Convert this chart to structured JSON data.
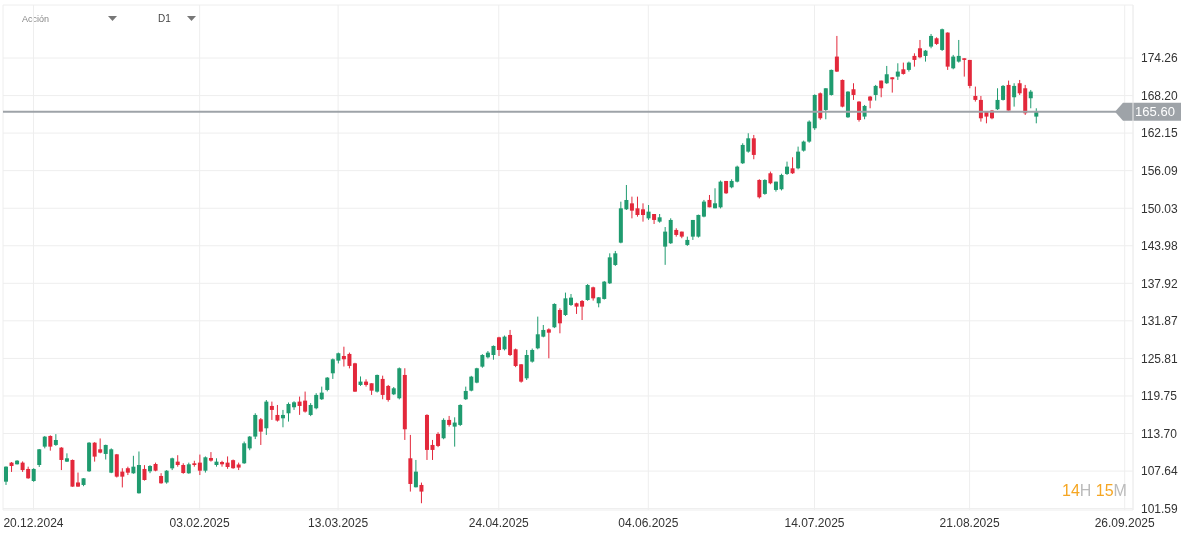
{
  "chart_data": {
    "type": "candlestick",
    "subtitle": "Acción",
    "annotations": [
      "D1",
      "14H 15M"
    ],
    "categories": [
      null,
      null,
      null,
      null,
      null,
      "20.12.2024",
      null,
      null,
      null,
      null,
      null,
      null,
      null,
      null,
      null,
      null,
      null,
      null,
      null,
      null,
      null,
      null,
      null,
      null,
      null,
      null,
      null,
      null,
      null,
      null,
      null,
      null,
      null,
      null,
      null,
      "03.02.2025",
      null,
      null,
      null,
      null,
      null,
      null,
      null,
      null,
      null,
      null,
      null,
      null,
      null,
      null,
      null,
      null,
      null,
      null,
      null,
      null,
      null,
      null,
      null,
      null,
      "13.03.2025",
      null,
      null,
      null,
      null,
      null,
      null,
      null,
      null,
      null,
      null,
      null,
      null,
      null,
      null,
      null,
      null,
      null,
      null,
      null,
      null,
      null,
      null,
      null,
      null,
      null,
      null,
      null,
      null,
      "24.04.2025",
      null,
      null,
      null,
      null,
      null,
      null,
      null,
      null,
      null,
      null,
      null,
      null,
      null,
      null,
      null,
      null,
      null,
      null,
      null,
      null,
      null,
      null,
      null,
      null,
      null,
      null,
      "04.06.2025",
      null,
      null,
      null,
      null,
      null,
      null,
      null,
      null,
      null,
      null,
      null,
      null,
      null,
      null,
      null,
      null,
      null,
      null,
      null,
      null,
      null,
      null,
      null,
      null,
      null,
      null,
      null,
      null,
      null,
      "14.07.2025",
      null,
      null,
      null,
      null,
      null,
      null,
      null,
      null,
      null,
      null,
      null,
      null,
      null,
      null,
      null,
      null,
      null,
      null,
      null,
      null,
      null,
      null,
      null,
      null,
      null,
      null,
      null,
      "21.08.2025",
      null,
      null,
      null,
      null,
      null,
      null,
      null,
      null,
      null,
      null,
      null,
      null,
      null,
      null,
      null,
      null,
      null,
      null,
      null,
      null,
      null,
      null,
      null,
      null,
      null,
      null,
      null,
      "26.09.2025",
      null
    ],
    "ohlc": [
      [
        105.93,
        108.4,
        105.4,
        108.35
      ],
      [
        109.0,
        109.1,
        107.5,
        108.46
      ],
      [
        108.73,
        109.4,
        108.7,
        109.32
      ],
      [
        109.0,
        109.2,
        107.5,
        107.8
      ],
      [
        107.98,
        108.35,
        106.4,
        106.47
      ],
      [
        106.04,
        108.1,
        105.9,
        107.98
      ],
      [
        108.62,
        111.2,
        108.3,
        111.15
      ],
      [
        111.58,
        113.3,
        111.3,
        113.19
      ],
      [
        113.3,
        113.4,
        110.93,
        111.58
      ],
      [
        111.85,
        113.6,
        111.7,
        112.65
      ],
      [
        111.42,
        111.5,
        107.8,
        109.43
      ],
      [
        109.16,
        110.5,
        109.1,
        109.7
      ],
      [
        109.43,
        109.5,
        105.1,
        105.13
      ],
      [
        105.8,
        107.4,
        105.1,
        105.13
      ],
      [
        105.4,
        106.5,
        105.2,
        106.47
      ],
      [
        107.6,
        112.3,
        107.5,
        112.22
      ],
      [
        112.22,
        112.3,
        109.16,
        109.97
      ],
      [
        111.15,
        112.9,
        110.5,
        110.61
      ],
      [
        110.4,
        111.9,
        109.5,
        111.85
      ],
      [
        107.38,
        111.3,
        107.3,
        111.15
      ],
      [
        110.34,
        110.4,
        106.6,
        106.74
      ],
      [
        107.55,
        108.1,
        105.0,
        106.74
      ],
      [
        108.1,
        108.35,
        107.0,
        107.38
      ],
      [
        107.28,
        110.1,
        107.2,
        108.35
      ],
      [
        104.06,
        110.8,
        104.0,
        108.62
      ],
      [
        107.98,
        108.6,
        106.1,
        106.2
      ],
      [
        107.6,
        108.6,
        107.3,
        108.46
      ],
      [
        108.78,
        109.0,
        107.6,
        107.7
      ],
      [
        106.85,
        107.3,
        105.6,
        105.67
      ],
      [
        105.8,
        107.8,
        105.6,
        107.7
      ],
      [
        108.08,
        109.8,
        107.8,
        109.7
      ],
      [
        109.16,
        110.2,
        108.35,
        108.62
      ],
      [
        108.62,
        108.9,
        107.2,
        107.33
      ],
      [
        107.28,
        109.0,
        107.2,
        108.73
      ],
      [
        108.89,
        109.3,
        108.35,
        108.62
      ],
      [
        109.0,
        110.3,
        107.0,
        107.7
      ],
      [
        107.7,
        110.0,
        107.4,
        109.86
      ],
      [
        109.75,
        110.7,
        109.16,
        109.32
      ],
      [
        108.62,
        109.7,
        108.35,
        109.16
      ],
      [
        109.1,
        109.3,
        108.35,
        108.73
      ],
      [
        109.0,
        110.0,
        108.0,
        108.3
      ],
      [
        109.4,
        109.5,
        108.0,
        108.1
      ],
      [
        108.7,
        109.0,
        107.8,
        108.2
      ],
      [
        108.89,
        112.4,
        108.8,
        112.12
      ],
      [
        111.3,
        113.3,
        111.0,
        113.2
      ],
      [
        113.2,
        116.96,
        112.8,
        116.69
      ],
      [
        115.99,
        116.2,
        111.85,
        114.0
      ],
      [
        114.54,
        119.1,
        113.47,
        118.84
      ],
      [
        118.14,
        118.84,
        115.89,
        117.5
      ],
      [
        116.69,
        118.3,
        115.62,
        115.78
      ],
      [
        116.15,
        117.5,
        114.7,
        116.69
      ],
      [
        116.96,
        118.7,
        115.62,
        118.46
      ],
      [
        117.93,
        118.9,
        117.5,
        118.73
      ],
      [
        118.84,
        119.65,
        116.7,
        118.14
      ],
      [
        119.0,
        120.46,
        117.07,
        117.23
      ],
      [
        116.69,
        118.6,
        116.5,
        118.3
      ],
      [
        117.77,
        120.2,
        117.6,
        119.92
      ],
      [
        119.22,
        121.26,
        119.11,
        120.29
      ],
      [
        120.72,
        122.8,
        120.5,
        122.71
      ],
      [
        123.41,
        125.8,
        122.5,
        125.67
      ],
      [
        125.45,
        126.75,
        125.0,
        126.64
      ],
      [
        126.2,
        127.7,
        124.5,
        125.67
      ],
      [
        126.53,
        126.75,
        124.2,
        124.6
      ],
      [
        125.02,
        125.1,
        120.4,
        120.45
      ],
      [
        121.53,
        122.9,
        121.37,
        122.07
      ],
      [
        122.07,
        122.44,
        121.26,
        121.53
      ],
      [
        121.8,
        121.8,
        119.92,
        120.61
      ],
      [
        120.45,
        123.2,
        120.3,
        123.14
      ],
      [
        122.5,
        123.03,
        119.22,
        119.92
      ],
      [
        121.37,
        121.53,
        118.84,
        119.11
      ],
      [
        120.02,
        121.2,
        119.9,
        120.99
      ],
      [
        119.38,
        124.35,
        119.2,
        124.22
      ],
      [
        123.14,
        124.22,
        112.66,
        114.38
      ],
      [
        109.7,
        113.47,
        104.33,
        105.56
      ],
      [
        105.03,
        109.43,
        105.0,
        107.55
      ],
      [
        105.4,
        105.78,
        102.45,
        104.33
      ],
      [
        116.69,
        116.8,
        109.43,
        111.05
      ],
      [
        111.85,
        112.66,
        109.43,
        111.05
      ],
      [
        113.63,
        113.9,
        111.5,
        111.69
      ],
      [
        112.93,
        116.15,
        112.77,
        115.89
      ],
      [
        115.89,
        116.53,
        114.81,
        115.08
      ],
      [
        114.81,
        116.31,
        111.58,
        115.46
      ],
      [
        115.08,
        118.4,
        114.9,
        118.3
      ],
      [
        119.22,
        121.26,
        119.11,
        120.56
      ],
      [
        120.61,
        123.0,
        120.5,
        122.87
      ],
      [
        121.9,
        124.3,
        121.8,
        124.22
      ],
      [
        124.48,
        126.5,
        124.3,
        126.36
      ],
      [
        125.99,
        127.0,
        125.8,
        126.74
      ],
      [
        126.36,
        127.9,
        125.6,
        127.82
      ],
      [
        129.21,
        129.3,
        126.2,
        127.17
      ],
      [
        127.28,
        129.5,
        127.1,
        129.32
      ],
      [
        129.59,
        130.4,
        126.2,
        126.36
      ],
      [
        127.28,
        127.4,
        124.4,
        124.59
      ],
      [
        124.86,
        124.9,
        121.9,
        122.06
      ],
      [
        122.6,
        127.17,
        122.33,
        126.36
      ],
      [
        125.29,
        127.4,
        125.13,
        127.17
      ],
      [
        127.44,
        132.55,
        127.28,
        129.7
      ],
      [
        129.32,
        131.2,
        129.21,
        130.4
      ],
      [
        130.5,
        130.66,
        125.83,
        129.96
      ],
      [
        130.83,
        134.7,
        130.7,
        134.59
      ],
      [
        133.62,
        133.89,
        129.86,
        131.47
      ],
      [
        132.81,
        136.42,
        132.65,
        135.5
      ],
      [
        134.43,
        136.2,
        134.27,
        135.61
      ],
      [
        134.7,
        134.8,
        132.98,
        134.16
      ],
      [
        135.07,
        135.23,
        132.0,
        134.16
      ],
      [
        135.23,
        137.8,
        135.1,
        137.65
      ],
      [
        137.28,
        137.38,
        135.13,
        135.5
      ],
      [
        134.7,
        135.7,
        134.05,
        135.66
      ],
      [
        135.4,
        138.3,
        135.3,
        138.19
      ],
      [
        137.92,
        142.76,
        137.81,
        142.11
      ],
      [
        140.88,
        143.14,
        140.72,
        142.76
      ],
      [
        144.48,
        151.09,
        144.37,
        150.02
      ],
      [
        149.86,
        153.78,
        149.75,
        151.36
      ],
      [
        150.82,
        151.9,
        148.4,
        149.64
      ],
      [
        150.02,
        151.9,
        148.67,
        148.94
      ],
      [
        149.86,
        150.82,
        147.87,
        148.94
      ],
      [
        148.4,
        150.55,
        148.14,
        149.48
      ],
      [
        149.1,
        149.1,
        147.49,
        148.14
      ],
      [
        147.87,
        149.1,
        147.7,
        148.57
      ],
      [
        143.84,
        147.0,
        140.9,
        146.26
      ],
      [
        144.38,
        148.41,
        144.27,
        148.14
      ],
      [
        146.53,
        146.8,
        145.45,
        145.72
      ],
      [
        146.26,
        146.26,
        145.19,
        145.45
      ],
      [
        144.11,
        145.45,
        143.95,
        144.92
      ],
      [
        145.45,
        148.14,
        144.92,
        148.14
      ],
      [
        145.45,
        149.0,
        145.3,
        148.95
      ],
      [
        148.68,
        151.37,
        148.57,
        151.1
      ],
      [
        151.37,
        152.17,
        150.18,
        150.18
      ],
      [
        150.02,
        153.25,
        150.02,
        150.83
      ],
      [
        150.18,
        154.5,
        150.0,
        154.32
      ],
      [
        154.43,
        154.43,
        152.34,
        152.44
      ],
      [
        153.41,
        154.7,
        153.25,
        154.43
      ],
      [
        154.32,
        156.9,
        154.2,
        156.74
      ],
      [
        157.28,
        160.51,
        157.17,
        160.24
      ],
      [
        159.16,
        162.12,
        158.99,
        161.31
      ],
      [
        161.31,
        161.85,
        157.93,
        158.63
      ],
      [
        154.59,
        154.7,
        151.6,
        151.8
      ],
      [
        152.34,
        154.7,
        152.2,
        154.59
      ],
      [
        155.67,
        155.94,
        153.9,
        154.06
      ],
      [
        152.98,
        154.32,
        152.71,
        154.32
      ],
      [
        153.09,
        155.6,
        152.9,
        155.4
      ],
      [
        155.56,
        157.55,
        155.4,
        156.74
      ],
      [
        156.47,
        158.25,
        155.56,
        155.67
      ],
      [
        156.47,
        159.97,
        156.31,
        159.16
      ],
      [
        159.32,
        160.94,
        159.16,
        160.78
      ],
      [
        160.78,
        164.2,
        160.6,
        164.0
      ],
      [
        162.93,
        168.4,
        162.66,
        168.3
      ],
      [
        168.57,
        168.7,
        164.3,
        164.54
      ],
      [
        165.88,
        169.38,
        164.38,
        169.38
      ],
      [
        168.3,
        172.4,
        168.2,
        172.34
      ],
      [
        174.49,
        177.82,
        172.0,
        172.07
      ],
      [
        170.72,
        170.8,
        166.3,
        166.42
      ],
      [
        164.7,
        168.9,
        164.6,
        168.84
      ],
      [
        169.22,
        170.19,
        167.5,
        168.3
      ],
      [
        167.23,
        167.3,
        164.0,
        164.27
      ],
      [
        164.81,
        166.69,
        164.38,
        166.53
      ],
      [
        168.04,
        168.14,
        166.15,
        167.39
      ],
      [
        168.3,
        169.92,
        167.39,
        169.76
      ],
      [
        170.62,
        170.62,
        167.93,
        169.38
      ],
      [
        170.19,
        172.98,
        170.08,
        171.64
      ],
      [
        171.15,
        171.15,
        168.68,
        170.83
      ],
      [
        171.26,
        173.41,
        170.72,
        172.07
      ],
      [
        172.44,
        173.52,
        171.58,
        171.69
      ],
      [
        172.34,
        173.68,
        172.07,
        173.52
      ],
      [
        174.6,
        175.02,
        172.87,
        173.95
      ],
      [
        175.83,
        177.17,
        174.22,
        174.38
      ],
      [
        174.59,
        175.56,
        173.68,
        175.45
      ],
      [
        176.1,
        178.14,
        175.83,
        177.82
      ],
      [
        177.44,
        177.6,
        176.37,
        176.53
      ],
      [
        175.56,
        179.0,
        175.4,
        178.9
      ],
      [
        178.36,
        178.4,
        172.34,
        172.87
      ],
      [
        172.6,
        174.76,
        172.44,
        174.49
      ],
      [
        173.68,
        177.17,
        173.52,
        174.6
      ],
      [
        174.22,
        174.22,
        171.26,
        173.95
      ],
      [
        173.95,
        173.95,
        169.38,
        169.76
      ],
      [
        168.14,
        169.65,
        167.23,
        167.5
      ],
      [
        167.5,
        168.14,
        164.0,
        164.54
      ],
      [
        165.61,
        165.61,
        163.73,
        164.81
      ],
      [
        165.78,
        165.88,
        164.38,
        164.54
      ],
      [
        165.99,
        169.38,
        165.88,
        167.5
      ],
      [
        167.5,
        169.9,
        167.4,
        169.76
      ],
      [
        169.92,
        170.62,
        165.78,
        165.78
      ],
      [
        167.93,
        170.19,
        166.42,
        169.76
      ],
      [
        170.19,
        170.72,
        168.3,
        168.57
      ],
      [
        169.38,
        169.92,
        165.08,
        165.35
      ],
      [
        167.77,
        169.11,
        166.15,
        168.84
      ],
      [
        164.81,
        166.15,
        163.73,
        165.6
      ],
      null,
      null,
      null,
      null,
      null,
      null,
      null,
      null,
      null,
      null,
      null,
      null,
      null,
      null,
      null,
      null,
      null
    ],
    "colors": [
      "#1f9b6f",
      "#e3283b",
      "#1f9b6f",
      "#e3283b",
      "#e3283b",
      "#1f9b6f",
      "#1f9b6f",
      "#1f9b6f",
      "#e3283b",
      "#1f9b6f",
      "#e3283b",
      "#1f9b6f",
      "#e3283b",
      "#e3283b",
      "#1f9b6f",
      "#1f9b6f",
      "#e3283b",
      "#e3283b",
      "#1f9b6f",
      "#1f9b6f",
      "#e3283b",
      "#e3283b",
      "#e3283b",
      "#1f9b6f",
      "#1f9b6f",
      "#e3283b",
      "#1f9b6f",
      "#e3283b",
      "#e3283b",
      "#1f9b6f",
      "#1f9b6f",
      "#e3283b",
      "#e3283b",
      "#1f9b6f",
      "#e3283b",
      "#e3283b",
      "#1f9b6f",
      "#e3283b",
      "#1f9b6f",
      "#e3283b",
      "#e3283b",
      "#e3283b",
      "#e3283b",
      "#1f9b6f",
      "#1f9b6f",
      "#1f9b6f",
      "#e3283b",
      "#1f9b6f",
      "#e3283b",
      "#e3283b",
      "#1f9b6f",
      "#1f9b6f",
      "#1f9b6f",
      "#e3283b",
      "#e3283b",
      "#1f9b6f",
      "#1f9b6f",
      "#1f9b6f",
      "#1f9b6f",
      "#1f9b6f",
      "#1f9b6f",
      "#e3283b",
      "#e3283b",
      "#e3283b",
      "#1f9b6f",
      "#e3283b",
      "#e3283b",
      "#1f9b6f",
      "#e3283b",
      "#e3283b",
      "#1f9b6f",
      "#1f9b6f",
      "#e3283b",
      "#e3283b",
      "#1f9b6f",
      "#e3283b",
      "#e3283b",
      "#e3283b",
      "#e3283b",
      "#1f9b6f",
      "#e3283b",
      "#1f9b6f",
      "#1f9b6f",
      "#1f9b6f",
      "#1f9b6f",
      "#1f9b6f",
      "#1f9b6f",
      "#1f9b6f",
      "#1f9b6f",
      "#e3283b",
      "#1f9b6f",
      "#e3283b",
      "#e3283b",
      "#e3283b",
      "#1f9b6f",
      "#1f9b6f",
      "#1f9b6f",
      "#1f9b6f",
      "#e3283b",
      "#1f9b6f",
      "#e3283b",
      "#1f9b6f",
      "#1f9b6f",
      "#e3283b",
      "#e3283b",
      "#1f9b6f",
      "#e3283b",
      "#1f9b6f",
      "#1f9b6f",
      "#1f9b6f",
      "#1f9b6f",
      "#1f9b6f",
      "#1f9b6f",
      "#e3283b",
      "#e3283b",
      "#e3283b",
      "#1f9b6f",
      "#e3283b",
      "#1f9b6f",
      "#1f9b6f",
      "#1f9b6f",
      "#e3283b",
      "#e3283b",
      "#1f9b6f",
      "#1f9b6f",
      "#1f9b6f",
      "#1f9b6f",
      "#e3283b",
      "#1f9b6f",
      "#1f9b6f",
      "#e3283b",
      "#1f9b6f",
      "#1f9b6f",
      "#1f9b6f",
      "#1f9b6f",
      "#e3283b",
      "#e3283b",
      "#1f9b6f",
      "#e3283b",
      "#1f9b6f",
      "#1f9b6f",
      "#1f9b6f",
      "#e3283b",
      "#1f9b6f",
      "#1f9b6f",
      "#1f9b6f",
      "#1f9b6f",
      "#e3283b",
      "#1f9b6f",
      "#1f9b6f",
      "#e3283b",
      "#e3283b",
      "#1f9b6f",
      "#e3283b",
      "#e3283b",
      "#1f9b6f",
      "#e3283b",
      "#1f9b6f",
      "#e3283b",
      "#1f9b6f",
      "#e3283b",
      "#1f9b6f",
      "#e3283b",
      "#1f9b6f",
      "#e3283b",
      "#e3283b",
      "#1f9b6f",
      "#1f9b6f",
      "#e3283b",
      "#1f9b6f",
      "#e3283b",
      "#1f9b6f",
      "#1f9b6f",
      "#e3283b",
      "#e3283b",
      "#e3283b",
      "#e3283b",
      "#e3283b",
      "#e3283b",
      "#1f9b6f",
      "#1f9b6f",
      "#e3283b",
      "#1f9b6f",
      "#e3283b",
      "#e3283b",
      "#1f9b6f",
      "#1f9b6f",
      null,
      null,
      null,
      null,
      null,
      null,
      null,
      null,
      null,
      null,
      null,
      null,
      null,
      null,
      null,
      null,
      null
    ],
    "ylim": [
      101.36,
      182.81
    ],
    "yticks": [
      101.59,
      107.64,
      {
        "value": 113.7,
        "label": "113.70"
      },
      119.75,
      125.81,
      131.87,
      137.92,
      143.98,
      150.03,
      156.09,
      162.15,
      {
        "value": 168.2,
        "label": "168.20"
      },
      174.26
    ],
    "ref_lines": [
      {
        "axis": "y",
        "value": 165.6,
        "label": "165.60",
        "color": "#9ea3a8"
      }
    ],
    "grid": true
  }
}
